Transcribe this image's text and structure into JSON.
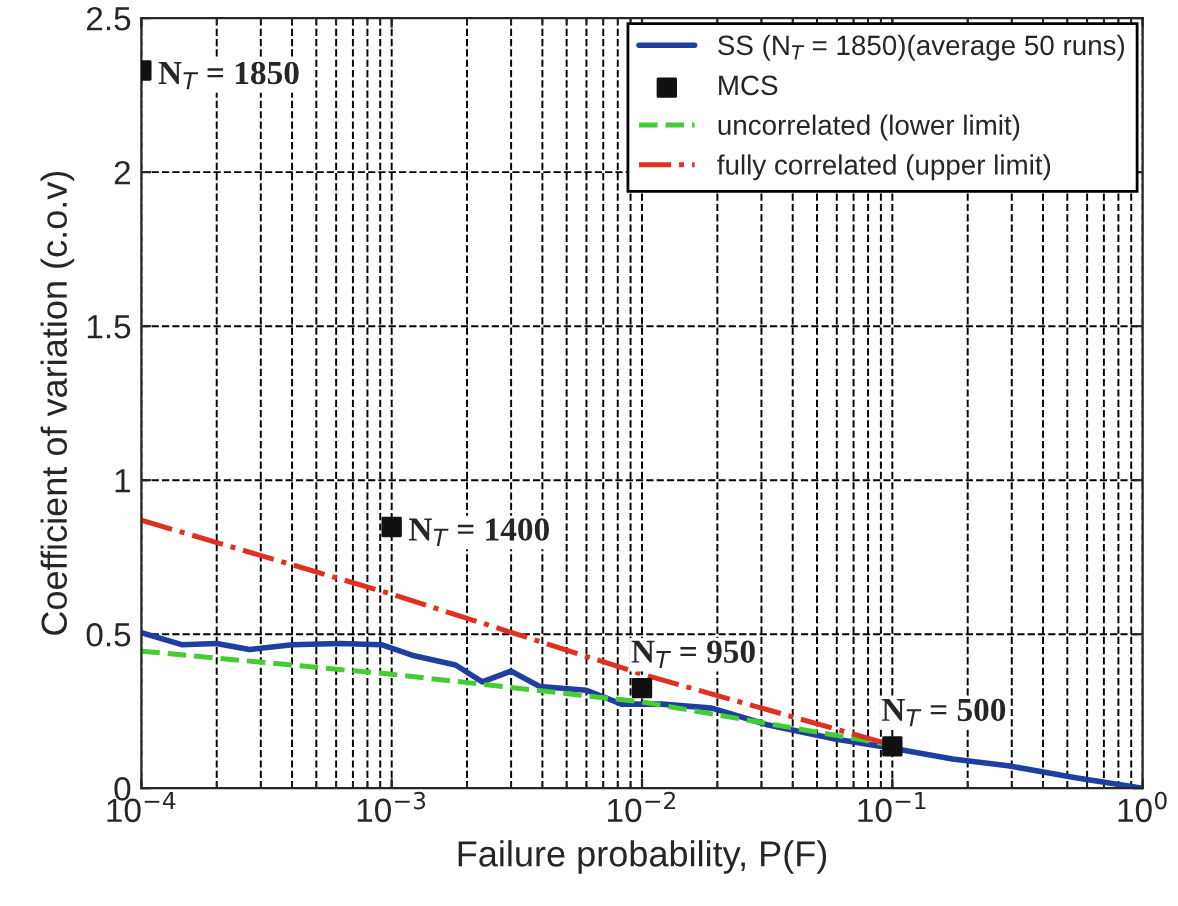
{
  "chart_data": {
    "type": "line",
    "xlabel": "Failure probability, P(F)",
    "ylabel": "Coefficient of variation (c.o.v)",
    "log": "x",
    "xlim": [
      0.0001,
      1
    ],
    "xticks": [
      {
        "value": 0.0001,
        "label": "10$^{−4}$"
      },
      {
        "value": 0.001,
        "label": "10$^{−3}$"
      },
      {
        "value": 0.01,
        "label": "10$^{−2}$"
      },
      {
        "value": 0.1,
        "label": "10$^{−1}$"
      },
      {
        "value": 1,
        "label": "10$^{0}$"
      }
    ],
    "ylim": [
      0,
      2.5
    ],
    "yticks": [
      0,
      0.5,
      1,
      1.5,
      2,
      2.5
    ],
    "grid": true,
    "legend": "top right",
    "series": [
      {
        "name": "SS (N$_{T}$ = 1850)(average 50 runs)",
        "color": "#1f3fa0",
        "line_style": "solid",
        "marker": "none",
        "x": [
          0.0001,
          0.000145,
          0.0002,
          0.00027,
          0.0004,
          0.00062,
          0.00091,
          0.00123,
          0.0018,
          0.0023,
          0.003,
          0.0039,
          0.006,
          0.0083,
          0.012,
          0.019,
          0.032,
          0.059,
          0.1,
          0.174,
          0.29,
          0.54,
          1
        ],
        "values": [
          0.505,
          0.466,
          0.47,
          0.45,
          0.466,
          0.47,
          0.466,
          0.43,
          0.4,
          0.345,
          0.38,
          0.33,
          0.318,
          0.273,
          0.273,
          0.26,
          0.205,
          0.16,
          0.13,
          0.095,
          0.073,
          0.034,
          0.0
        ]
      },
      {
        "name": "MCS",
        "color": "#111111",
        "type": "scatter",
        "marker": "square",
        "x": [
          0.0001,
          0.001,
          0.01,
          0.1
        ],
        "values": [
          2.33,
          0.848,
          0.325,
          0.136
        ]
      },
      {
        "name": "uncorrelated (lower limit)",
        "color": "#44cc33",
        "line_style": "dashed",
        "marker": "none",
        "x": [
          0.0001,
          0.001,
          0.01,
          0.1
        ],
        "values": [
          0.445,
          0.37,
          0.28,
          0.14
        ]
      },
      {
        "name": "fully correlated (upper limit)",
        "color": "#e03020",
        "line_style": "dashdot",
        "marker": "none",
        "x": [
          0.0001,
          0.001,
          0.01,
          0.1
        ],
        "values": [
          0.87,
          0.63,
          0.37,
          0.14
        ]
      }
    ],
    "annotations": [
      {
        "text": "N$_{T}$ = 1850",
        "x": 0.0001,
        "y": 2.33
      },
      {
        "text": "N$_{T}$ = 1400",
        "x": 0.001,
        "y": 0.848
      },
      {
        "text": "N$_{T}$ = 950",
        "x": 0.01,
        "y": 0.325
      },
      {
        "text": "N$_{T}$ = 500",
        "x": 0.1,
        "y": 0.136
      }
    ]
  }
}
